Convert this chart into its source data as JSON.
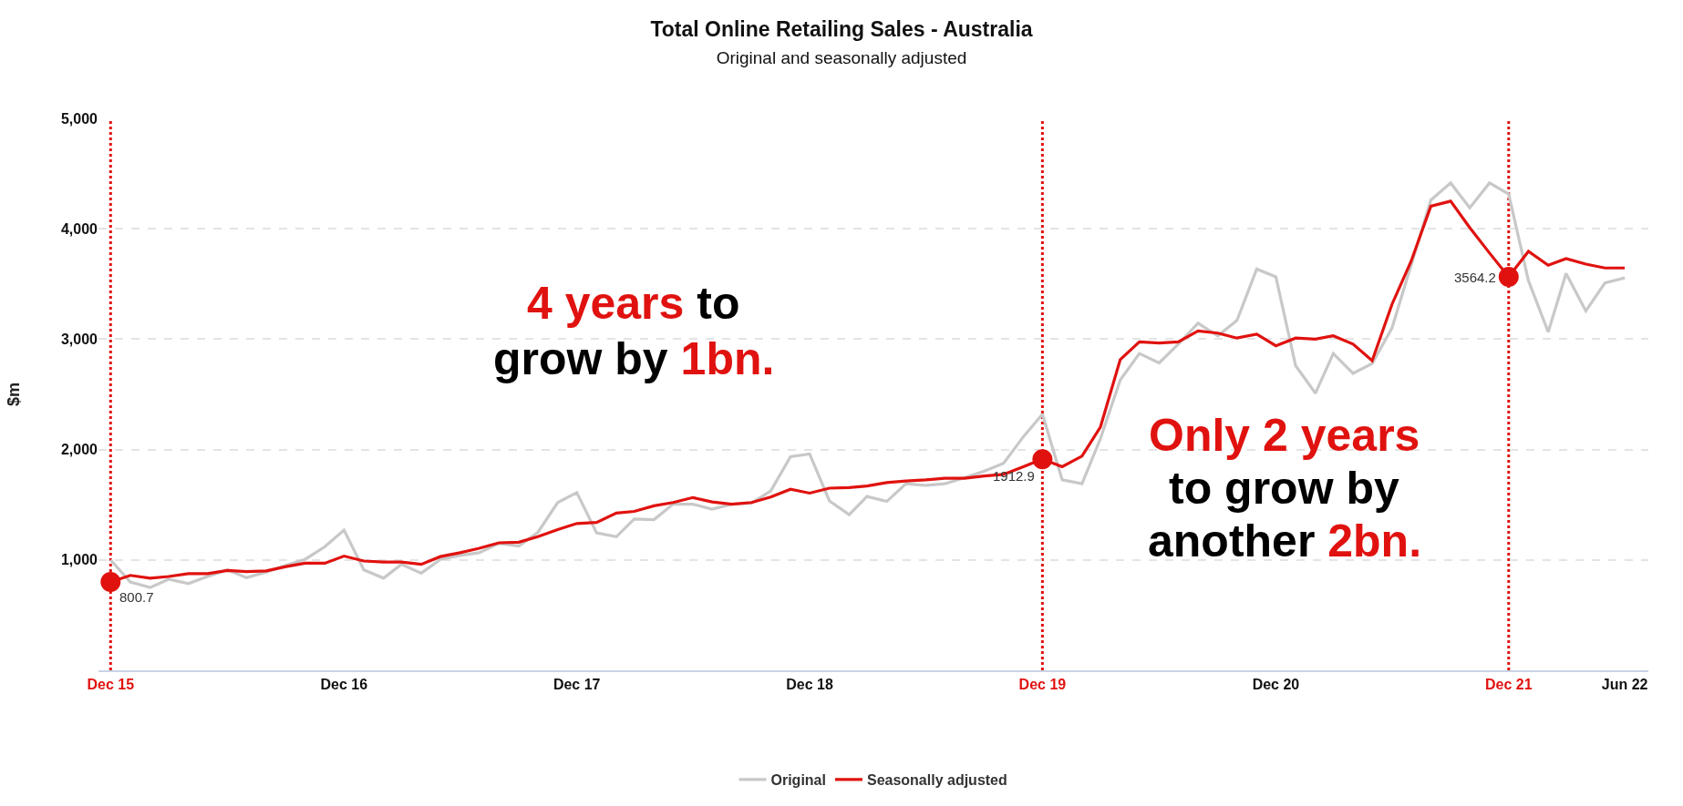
{
  "chart_data": {
    "type": "line",
    "title": "Total Online Retailing Sales - Australia",
    "subtitle": "Original and seasonally adjusted",
    "ylabel": "$m",
    "x": [
      "2015-12",
      "2016-01",
      "2016-02",
      "2016-03",
      "2016-04",
      "2016-05",
      "2016-06",
      "2016-07",
      "2016-08",
      "2016-09",
      "2016-10",
      "2016-11",
      "2016-12",
      "2017-01",
      "2017-02",
      "2017-03",
      "2017-04",
      "2017-05",
      "2017-06",
      "2017-07",
      "2017-08",
      "2017-09",
      "2017-10",
      "2017-11",
      "2017-12",
      "2018-01",
      "2018-02",
      "2018-03",
      "2018-04",
      "2018-05",
      "2018-06",
      "2018-07",
      "2018-08",
      "2018-09",
      "2018-10",
      "2018-11",
      "2018-12",
      "2019-01",
      "2019-02",
      "2019-03",
      "2019-04",
      "2019-05",
      "2019-06",
      "2019-07",
      "2019-08",
      "2019-09",
      "2019-10",
      "2019-11",
      "2019-12",
      "2020-01",
      "2020-02",
      "2020-03",
      "2020-04",
      "2020-05",
      "2020-06",
      "2020-07",
      "2020-08",
      "2020-09",
      "2020-10",
      "2020-11",
      "2020-12",
      "2021-01",
      "2021-02",
      "2021-03",
      "2021-04",
      "2021-05",
      "2021-06",
      "2021-07",
      "2021-08",
      "2021-09",
      "2021-10",
      "2021-11",
      "2021-12",
      "2022-01",
      "2022-02",
      "2022-03",
      "2022-04",
      "2022-05",
      "2022-06"
    ],
    "series": [
      {
        "name": "Original",
        "color": "#c8c8c8",
        "values": [
          1000,
          800,
          750,
          825,
          785,
          850,
          910,
          840,
          890,
          950,
          1005,
          1120,
          1270,
          910,
          835,
          960,
          880,
          1005,
          1040,
          1065,
          1150,
          1125,
          1250,
          1520,
          1610,
          1245,
          1210,
          1370,
          1365,
          1505,
          1505,
          1460,
          1505,
          1515,
          1625,
          1935,
          1960,
          1535,
          1410,
          1575,
          1530,
          1690,
          1675,
          1690,
          1745,
          1805,
          1875,
          2115,
          2320,
          1725,
          1690,
          2100,
          2630,
          2870,
          2785,
          2955,
          3145,
          3030,
          3170,
          3635,
          3565,
          2760,
          2510,
          2870,
          2690,
          2780,
          3100,
          3670,
          4260,
          4415,
          4190,
          4415,
          4315,
          3530,
          3065,
          3595,
          3255,
          3510,
          3555
        ]
      },
      {
        "name": "Seasonally adjusted",
        "color": "#e0120f",
        "values": [
          800.7,
          860,
          835,
          850,
          875,
          875,
          905,
          895,
          900,
          940,
          970,
          970,
          1035,
          990,
          980,
          980,
          960,
          1030,
          1065,
          1105,
          1155,
          1160,
          1210,
          1275,
          1330,
          1340,
          1425,
          1440,
          1490,
          1520,
          1565,
          1525,
          1505,
          1520,
          1570,
          1640,
          1605,
          1650,
          1655,
          1670,
          1700,
          1715,
          1725,
          1740,
          1740,
          1760,
          1775,
          1845,
          1912.9,
          1845,
          1940,
          2205,
          2815,
          2975,
          2965,
          2975,
          3075,
          3055,
          3010,
          3045,
          2940,
          3010,
          3000,
          3030,
          2955,
          2805,
          3315,
          3705,
          4205,
          4250,
          4010,
          3780,
          3564.2,
          3795,
          3670,
          3730,
          3680,
          3645,
          3645
        ]
      }
    ],
    "xlim": [
      "2015-11-12",
      "2022-07-08"
    ],
    "xticks": [
      {
        "value": "2015-12",
        "label": "Dec 15"
      },
      {
        "value": "2016-12",
        "label": "Dec 16"
      },
      {
        "value": "2017-12",
        "label": "Dec 17"
      },
      {
        "value": "2018-12",
        "label": "Dec 18"
      },
      {
        "value": "2019-12",
        "label": "Dec 19"
      },
      {
        "value": "2020-12",
        "label": "Dec 20"
      },
      {
        "value": "2021-12",
        "label": "Dec 21"
      },
      {
        "value": "2022-06",
        "label": "Jun 22"
      }
    ],
    "ylim": [
      0,
      5000
    ],
    "yticks": [
      {
        "value": 0,
        "label": null
      },
      {
        "value": 1000,
        "label": "1,000"
      },
      {
        "value": 2000,
        "label": "2,000"
      },
      {
        "value": 3000,
        "label": "3,000"
      },
      {
        "value": 4000,
        "label": "4,000"
      },
      {
        "value": 5000,
        "label": "5,000"
      }
    ],
    "grid": "y",
    "legend": "bottom",
    "marker": "none",
    "line_style": "solid",
    "ref_lines": [
      {
        "axis": "x",
        "value": "2015-12",
        "label": null,
        "color": "#e0120f",
        "line_style": "dotted"
      },
      {
        "axis": "x",
        "value": "2019-12",
        "label": null,
        "color": "#e0120f",
        "line_style": "dotted"
      },
      {
        "axis": "x",
        "value": "2021-12",
        "label": null,
        "color": "#e0120f",
        "line_style": "dotted"
      }
    ],
    "annotations": [
      {
        "text": "800.7",
        "x": "2015-12",
        "y": 800.7
      },
      {
        "text": "1912.9",
        "x": "2019-12",
        "y": 1912.9
      },
      {
        "text": "3564.2",
        "x": "2021-12",
        "y": 3564.2
      },
      "4 years",
      "to",
      "grow by",
      "1bn.",
      "Only 2 years",
      "to grow by",
      "another",
      "2bn."
    ]
  }
}
